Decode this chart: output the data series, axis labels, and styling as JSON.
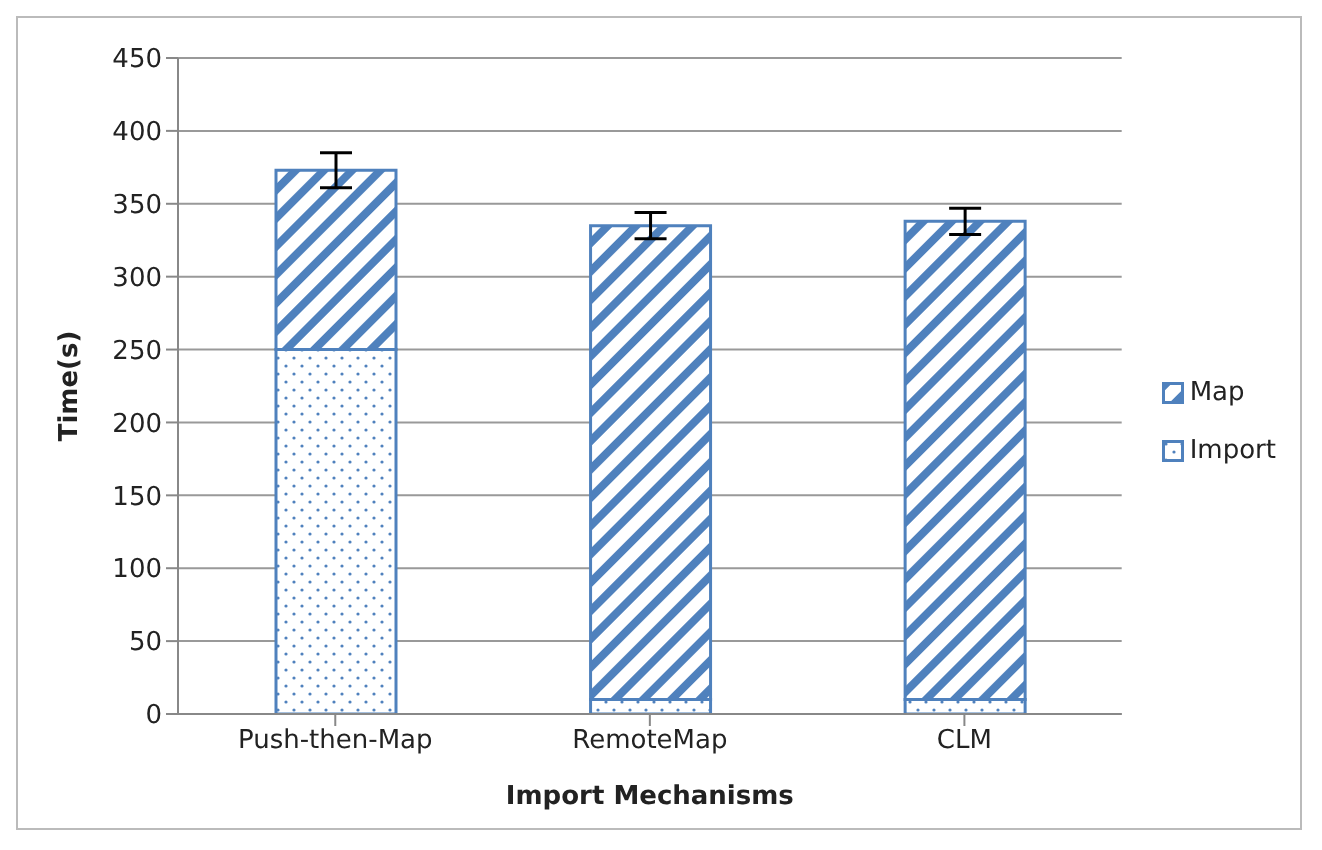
{
  "chart_data": {
    "type": "bar",
    "stacked": true,
    "xlabel": "Import Mechanisms",
    "ylabel": "Time(s)",
    "categories": [
      "Push-then-Map",
      "RemoteMap",
      "CLM"
    ],
    "series": [
      {
        "name": "Import",
        "color": "#4f81bd",
        "values": [
          250,
          10,
          10
        ]
      },
      {
        "name": "Map",
        "color": "#4f81bd",
        "values": [
          123,
          325,
          328
        ],
        "errors": [
          12,
          9,
          9
        ]
      }
    ],
    "ylim": [
      0,
      450
    ],
    "yticks": [
      0,
      50,
      100,
      150,
      200,
      250,
      300,
      350,
      400,
      450
    ],
    "grid": "y",
    "legend": "right"
  }
}
